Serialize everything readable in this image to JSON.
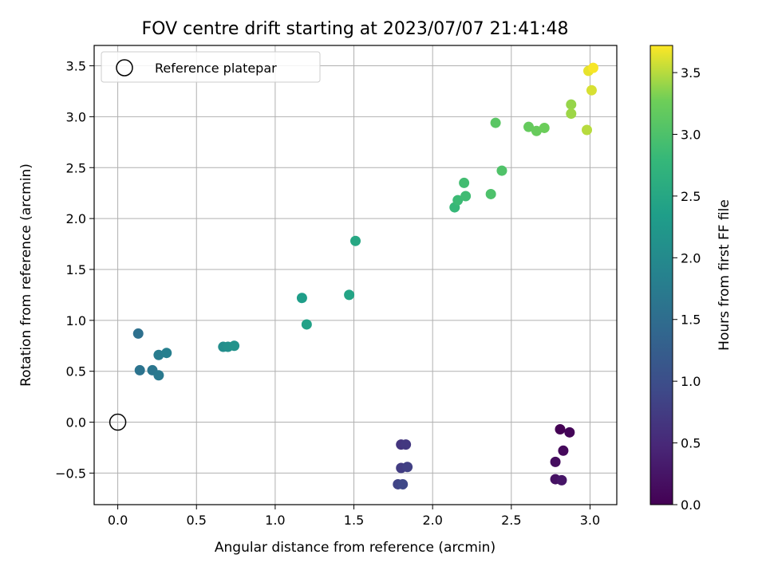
{
  "chart_data": {
    "type": "scatter",
    "title": "FOV centre drift starting at 2023/07/07 21:41:48",
    "xlabel": "Angular distance from reference (arcmin)",
    "ylabel": "Rotation from reference (arcmin)",
    "xlim": [
      -0.15,
      3.17
    ],
    "ylim": [
      -0.81,
      3.7
    ],
    "xticks": [
      "0.0",
      "0.5",
      "1.0",
      "1.5",
      "2.0",
      "2.5",
      "3.0"
    ],
    "xtick_values": [
      0,
      0.5,
      1.0,
      1.5,
      2.0,
      2.5,
      3.0
    ],
    "yticks": [
      "−0.5",
      "0.0",
      "0.5",
      "1.0",
      "1.5",
      "2.0",
      "2.5",
      "3.0",
      "3.5"
    ],
    "ytick_values": [
      -0.5,
      0,
      0.5,
      1.0,
      1.5,
      2.0,
      2.5,
      3.0,
      3.5
    ],
    "grid": true,
    "legend": {
      "placement": "top-left",
      "label": "Reference platepar"
    },
    "reference": {
      "x": 0.0,
      "y": 0.0
    },
    "colorbar": {
      "label": "Hours from first FF file",
      "colormap": "viridis",
      "range": [
        0.0,
        3.72
      ],
      "ticks": [
        "0.0",
        "0.5",
        "1.0",
        "1.5",
        "2.0",
        "2.5",
        "3.0",
        "3.5"
      ],
      "tick_values": [
        0,
        0.5,
        1.0,
        1.5,
        2.0,
        2.5,
        3.0,
        3.5
      ]
    },
    "points": [
      {
        "x": 2.81,
        "y": -0.07,
        "hours": 0.0
      },
      {
        "x": 2.87,
        "y": -0.1,
        "hours": 0.05
      },
      {
        "x": 2.83,
        "y": -0.28,
        "hours": 0.1
      },
      {
        "x": 2.78,
        "y": -0.39,
        "hours": 0.15
      },
      {
        "x": 2.78,
        "y": -0.56,
        "hours": 0.2
      },
      {
        "x": 2.82,
        "y": -0.57,
        "hours": 0.25
      },
      {
        "x": 1.8,
        "y": -0.22,
        "hours": 0.65
      },
      {
        "x": 1.83,
        "y": -0.22,
        "hours": 0.7
      },
      {
        "x": 1.8,
        "y": -0.45,
        "hours": 0.75
      },
      {
        "x": 1.84,
        "y": -0.44,
        "hours": 0.8
      },
      {
        "x": 1.78,
        "y": -0.61,
        "hours": 0.85
      },
      {
        "x": 1.81,
        "y": -0.61,
        "hours": 0.9
      },
      {
        "x": 0.13,
        "y": 0.87,
        "hours": 1.55
      },
      {
        "x": 0.14,
        "y": 0.51,
        "hours": 1.6
      },
      {
        "x": 0.22,
        "y": 0.51,
        "hours": 1.65
      },
      {
        "x": 0.26,
        "y": 0.46,
        "hours": 1.7
      },
      {
        "x": 0.26,
        "y": 0.66,
        "hours": 1.75
      },
      {
        "x": 0.31,
        "y": 0.68,
        "hours": 1.8
      },
      {
        "x": 0.67,
        "y": 0.74,
        "hours": 2.05
      },
      {
        "x": 0.7,
        "y": 0.74,
        "hours": 2.1
      },
      {
        "x": 0.74,
        "y": 0.75,
        "hours": 2.15
      },
      {
        "x": 1.17,
        "y": 1.22,
        "hours": 2.35
      },
      {
        "x": 1.2,
        "y": 0.96,
        "hours": 2.4
      },
      {
        "x": 1.47,
        "y": 1.25,
        "hours": 2.45
      },
      {
        "x": 1.51,
        "y": 1.78,
        "hours": 2.5
      },
      {
        "x": 2.14,
        "y": 2.11,
        "hours": 2.8
      },
      {
        "x": 2.16,
        "y": 2.18,
        "hours": 2.85
      },
      {
        "x": 2.21,
        "y": 2.22,
        "hours": 2.88
      },
      {
        "x": 2.2,
        "y": 2.35,
        "hours": 2.9
      },
      {
        "x": 2.37,
        "y": 2.24,
        "hours": 3.0
      },
      {
        "x": 2.44,
        "y": 2.47,
        "hours": 3.02
      },
      {
        "x": 2.4,
        "y": 2.94,
        "hours": 3.1
      },
      {
        "x": 2.61,
        "y": 2.9,
        "hours": 3.2
      },
      {
        "x": 2.66,
        "y": 2.86,
        "hours": 3.22
      },
      {
        "x": 2.71,
        "y": 2.89,
        "hours": 3.25
      },
      {
        "x": 2.88,
        "y": 3.12,
        "hours": 3.4
      },
      {
        "x": 2.88,
        "y": 3.03,
        "hours": 3.42
      },
      {
        "x": 2.98,
        "y": 2.87,
        "hours": 3.5
      },
      {
        "x": 3.01,
        "y": 3.26,
        "hours": 3.6
      },
      {
        "x": 2.99,
        "y": 3.45,
        "hours": 3.65
      },
      {
        "x": 3.02,
        "y": 3.48,
        "hours": 3.7
      }
    ]
  }
}
